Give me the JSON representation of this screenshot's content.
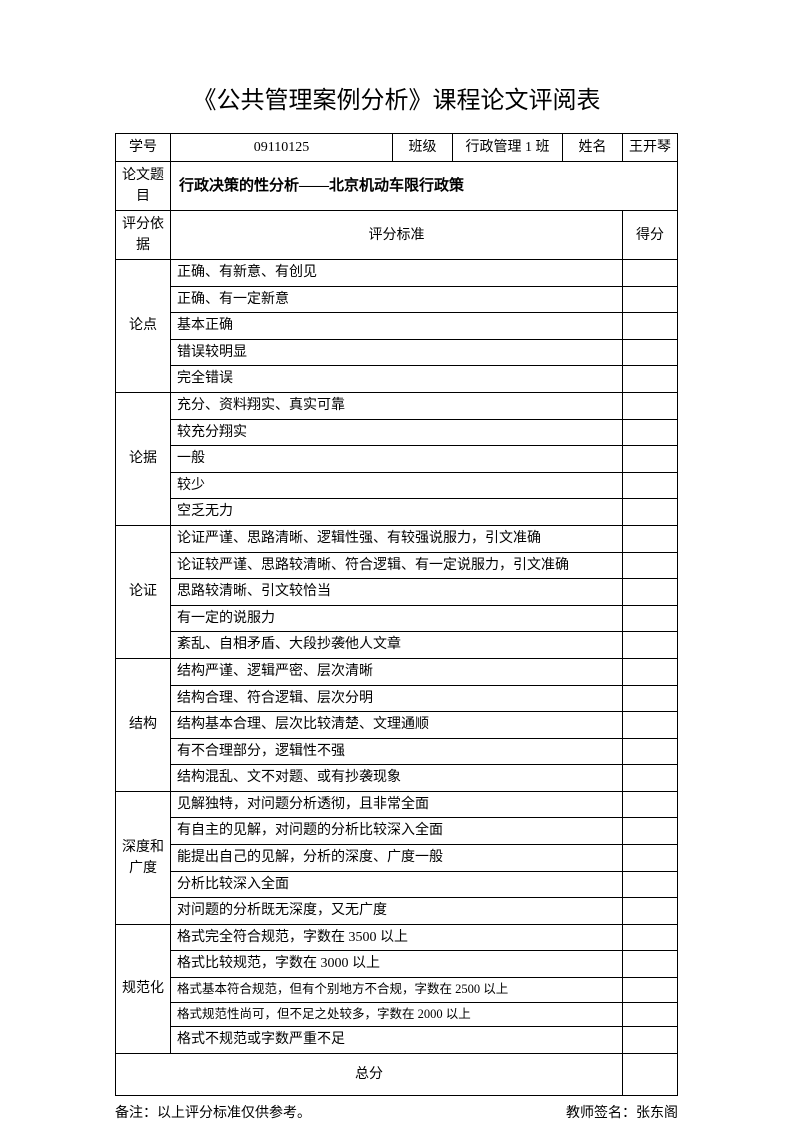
{
  "title": "《公共管理案例分析》课程论文评阅表",
  "header": {
    "student_id_label": "学号",
    "student_id": "09110125",
    "class_label": "班级",
    "class_name": "行政管理 1 班",
    "name_label": "姓名",
    "name": "王开琴"
  },
  "thesis": {
    "label": "论文题目",
    "title": "行政决策的性分析——北京机动车限行政策"
  },
  "criteria_header": {
    "basis_label": "评分依据",
    "standard_label": "评分标准",
    "score_label": "得分"
  },
  "sections": [
    {
      "name": "论点",
      "items": [
        "正确、有新意、有创见",
        "正确、有一定新意",
        "基本正确",
        "错误较明显",
        "完全错误"
      ]
    },
    {
      "name": "论据",
      "items": [
        "充分、资料翔实、真实可靠",
        "较充分翔实",
        "一般",
        "较少",
        "空乏无力"
      ]
    },
    {
      "name": "论证",
      "items": [
        "论证严谨、思路清晰、逻辑性强、有较强说服力，引文准确",
        "论证较严谨、思路较清晰、符合逻辑、有一定说服力，引文准确",
        "思路较清晰、引文较恰当",
        "有一定的说服力",
        "紊乱、自相矛盾、大段抄袭他人文章"
      ]
    },
    {
      "name": "结构",
      "items": [
        "结构严谨、逻辑严密、层次清晰",
        "结构合理、符合逻辑、层次分明",
        "结构基本合理、层次比较清楚、文理通顺",
        "有不合理部分，逻辑性不强",
        "结构混乱、文不对题、或有抄袭现象"
      ]
    },
    {
      "name": "深度和广度",
      "items": [
        "见解独特，对问题分析透彻，且非常全面",
        "有自主的见解，对问题的分析比较深入全面",
        "能提出自己的见解，分析的深度、广度一般",
        "分析比较深入全面",
        "对问题的分析既无深度，又无广度"
      ]
    },
    {
      "name": "规范化",
      "items": [
        "格式完全符合规范，字数在 3500 以上",
        "格式比较规范，字数在 3000 以上",
        "格式基本符合规范，但有个别地方不合规，字数在 2500 以上",
        "格式规范性尚可，但不足之处较多，字数在 2000 以上",
        "格式不规范或字数严重不足"
      ],
      "small_font_indices": [
        2,
        3
      ]
    }
  ],
  "total": {
    "label": "总分"
  },
  "footer": {
    "note": "备注：以上评分标准仅供参考。",
    "signature_label": "教师签名：",
    "signature": "张东阁"
  },
  "colors": {
    "background": "#ffffff",
    "text": "#000000",
    "border": "#000000"
  }
}
